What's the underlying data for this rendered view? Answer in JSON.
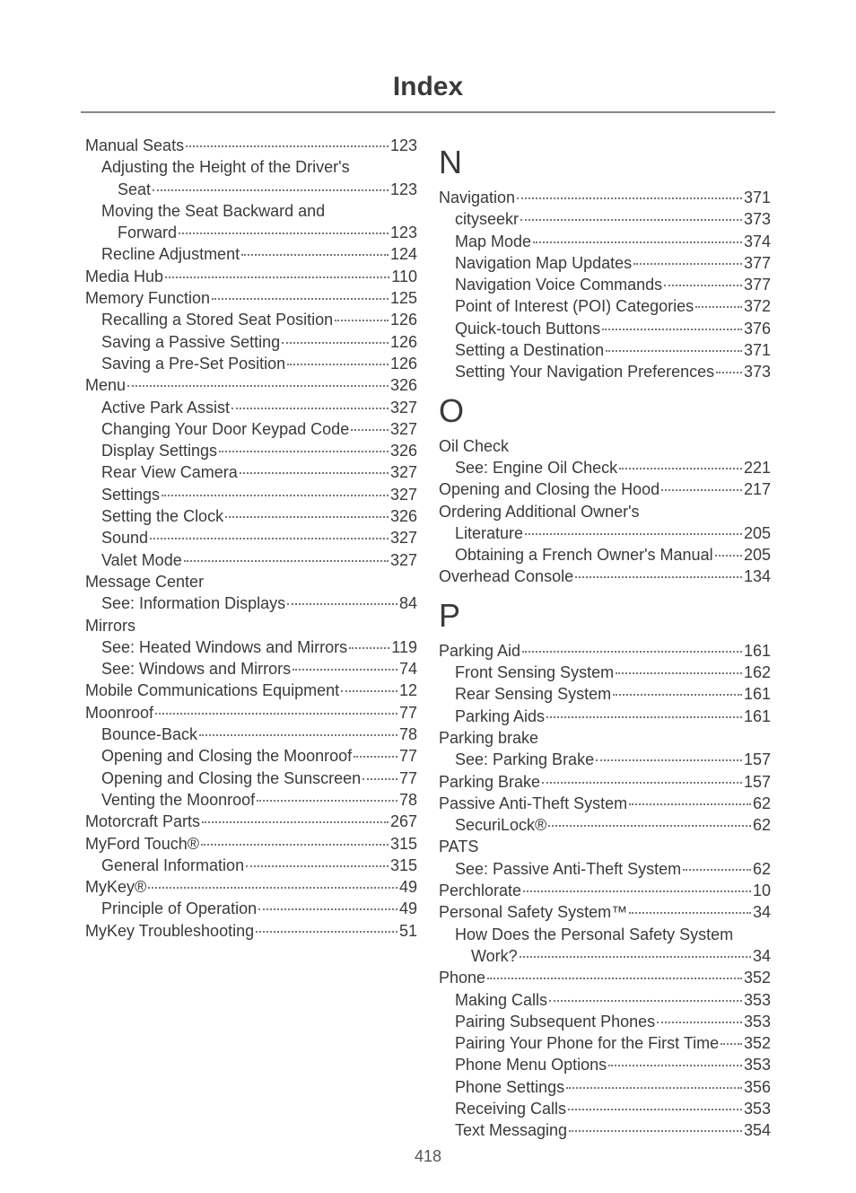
{
  "title": "Index",
  "pageNumber": "418",
  "colors": {
    "text": "#3a3a3a",
    "rule": "#888888",
    "dots": "#777777",
    "bg": "#ffffff"
  },
  "fonts": {
    "title_size": 30,
    "letter_size": 36,
    "entry_size": 18
  },
  "left": [
    {
      "level": 0,
      "label": "Manual Seats",
      "page": "123"
    },
    {
      "level": 1,
      "label": "Adjusting the Height of the Driver's",
      "cont": "Seat",
      "page": "123"
    },
    {
      "level": 1,
      "label": "Moving the Seat Backward and",
      "cont": "Forward",
      "page": "123"
    },
    {
      "level": 1,
      "label": "Recline Adjustment",
      "page": "124"
    },
    {
      "level": 0,
      "label": "Media Hub",
      "page": "110"
    },
    {
      "level": 0,
      "label": "Memory Function",
      "page": "125"
    },
    {
      "level": 1,
      "label": "Recalling a Stored Seat Position",
      "page": "126"
    },
    {
      "level": 1,
      "label": "Saving a Passive Setting",
      "page": "126"
    },
    {
      "level": 1,
      "label": "Saving a Pre-Set Position",
      "page": "126"
    },
    {
      "level": 0,
      "label": "Menu",
      "page": "326"
    },
    {
      "level": 1,
      "label": "Active Park Assist",
      "page": "327"
    },
    {
      "level": 1,
      "label": "Changing Your Door Keypad Code",
      "page": "327"
    },
    {
      "level": 1,
      "label": "Display Settings",
      "page": "326"
    },
    {
      "level": 1,
      "label": "Rear View Camera",
      "page": "327"
    },
    {
      "level": 1,
      "label": "Settings",
      "page": "327"
    },
    {
      "level": 1,
      "label": "Setting the Clock",
      "page": "326"
    },
    {
      "level": 1,
      "label": "Sound",
      "page": "327"
    },
    {
      "level": 1,
      "label": "Valet Mode",
      "page": "327"
    },
    {
      "level": 0,
      "label": "Message Center",
      "nopage": true
    },
    {
      "level": 1,
      "label": "See: Information Displays",
      "page": "84"
    },
    {
      "level": 0,
      "label": "Mirrors",
      "nopage": true
    },
    {
      "level": 1,
      "label": "See: Heated Windows and Mirrors",
      "page": "119"
    },
    {
      "level": 1,
      "label": "See: Windows and Mirrors",
      "page": "74"
    },
    {
      "level": 0,
      "label": "Mobile Communications Equipment",
      "page": "12"
    },
    {
      "level": 0,
      "label": "Moonroof",
      "page": "77"
    },
    {
      "level": 1,
      "label": "Bounce-Back",
      "page": "78"
    },
    {
      "level": 1,
      "label": "Opening and Closing the Moonroof",
      "page": "77"
    },
    {
      "level": 1,
      "label": "Opening and Closing the Sunscreen",
      "page": "77"
    },
    {
      "level": 1,
      "label": "Venting the Moonroof",
      "page": "78"
    },
    {
      "level": 0,
      "label": "Motorcraft Parts",
      "page": "267"
    },
    {
      "level": 0,
      "label": "MyFord Touch®",
      "page": "315"
    },
    {
      "level": 1,
      "label": "General Information",
      "page": "315"
    },
    {
      "level": 0,
      "label": "MyKey®",
      "page": "49"
    },
    {
      "level": 1,
      "label": "Principle of Operation",
      "page": "49"
    },
    {
      "level": 0,
      "label": "MyKey Troubleshooting",
      "page": "51"
    }
  ],
  "right": [
    {
      "letter": "N"
    },
    {
      "level": 0,
      "label": "Navigation",
      "page": "371"
    },
    {
      "level": 1,
      "label": "cityseekr",
      "page": "373"
    },
    {
      "level": 1,
      "label": "Map Mode",
      "page": "374"
    },
    {
      "level": 1,
      "label": "Navigation Map Updates",
      "page": "377"
    },
    {
      "level": 1,
      "label": "Navigation Voice Commands",
      "page": "377"
    },
    {
      "level": 1,
      "label": "Point of Interest (POI) Categories",
      "page": "372"
    },
    {
      "level": 1,
      "label": "Quick-touch Buttons",
      "page": "376"
    },
    {
      "level": 1,
      "label": "Setting a Destination",
      "page": "371"
    },
    {
      "level": 1,
      "label": "Setting Your Navigation Preferences",
      "page": "373"
    },
    {
      "letter": "O"
    },
    {
      "level": 0,
      "label": "Oil Check",
      "nopage": true
    },
    {
      "level": 1,
      "label": "See: Engine Oil Check",
      "page": "221"
    },
    {
      "level": 0,
      "label": "Opening and Closing the Hood",
      "page": "217"
    },
    {
      "level": 0,
      "label": "Ordering Additional Owner's",
      "cont": "Literature",
      "page": "205"
    },
    {
      "level": 1,
      "label": "Obtaining a French Owner's Manual",
      "page": "205"
    },
    {
      "level": 0,
      "label": "Overhead Console",
      "page": "134"
    },
    {
      "letter": "P"
    },
    {
      "level": 0,
      "label": "Parking Aid",
      "page": "161"
    },
    {
      "level": 1,
      "label": "Front Sensing System",
      "page": "162"
    },
    {
      "level": 1,
      "label": "Rear Sensing System",
      "page": "161"
    },
    {
      "level": 1,
      "label": "Parking Aids",
      "page": "161"
    },
    {
      "level": 0,
      "label": "Parking brake",
      "nopage": true
    },
    {
      "level": 1,
      "label": "See: Parking Brake",
      "page": "157"
    },
    {
      "level": 0,
      "label": "Parking Brake",
      "page": "157"
    },
    {
      "level": 0,
      "label": "Passive Anti-Theft System",
      "page": "62"
    },
    {
      "level": 1,
      "label": "SecuriLock®",
      "page": "62"
    },
    {
      "level": 0,
      "label": "PATS",
      "nopage": true
    },
    {
      "level": 1,
      "label": "See: Passive Anti-Theft System",
      "page": "62"
    },
    {
      "level": 0,
      "label": "Perchlorate",
      "page": "10"
    },
    {
      "level": 0,
      "label": "Personal Safety System™",
      "page": "34"
    },
    {
      "level": 1,
      "label": "How Does the Personal Safety System",
      "cont": "Work?",
      "page": "34"
    },
    {
      "level": 0,
      "label": "Phone",
      "page": "352"
    },
    {
      "level": 1,
      "label": "Making Calls",
      "page": "353"
    },
    {
      "level": 1,
      "label": "Pairing Subsequent Phones",
      "page": "353"
    },
    {
      "level": 1,
      "label": "Pairing Your Phone for the First Time",
      "page": "352"
    },
    {
      "level": 1,
      "label": "Phone Menu Options",
      "page": "353"
    },
    {
      "level": 1,
      "label": "Phone Settings",
      "page": "356"
    },
    {
      "level": 1,
      "label": "Receiving Calls",
      "page": "353"
    },
    {
      "level": 1,
      "label": "Text Messaging",
      "page": "354"
    }
  ]
}
